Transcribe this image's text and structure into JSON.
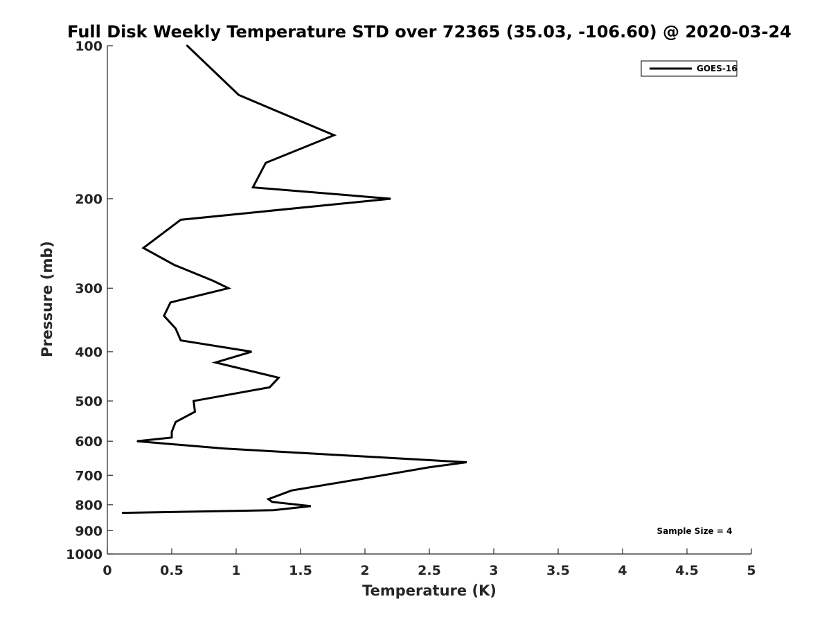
{
  "chart_data": {
    "type": "line",
    "title": "Full Disk Weekly Temperature STD over 72365 (35.03, -106.60) @ 2020-03-24",
    "xlabel": "Temperature (K)",
    "ylabel": "Pressure (mb)",
    "xlim": [
      0,
      5
    ],
    "ylim": [
      100,
      1000
    ],
    "y_scale": "log",
    "y_reversed": true,
    "x_ticks": [
      "0",
      "0.5",
      "1",
      "1.5",
      "2",
      "2.5",
      "3",
      "3.5",
      "4",
      "4.5",
      "5"
    ],
    "y_ticks": [
      "100",
      "200",
      "300",
      "400",
      "500",
      "600",
      "700",
      "800",
      "900",
      "1000"
    ],
    "grid": false,
    "legend_position": "top-right",
    "series": [
      {
        "name": "GOES-16",
        "color": "#000000",
        "points": [
          {
            "x": 0.62,
            "y": 100
          },
          {
            "x": 1.02,
            "y": 125
          },
          {
            "x": 1.76,
            "y": 150
          },
          {
            "x": 1.23,
            "y": 170
          },
          {
            "x": 1.13,
            "y": 190
          },
          {
            "x": 2.2,
            "y": 200
          },
          {
            "x": 0.57,
            "y": 220
          },
          {
            "x": 0.28,
            "y": 250
          },
          {
            "x": 0.52,
            "y": 270
          },
          {
            "x": 0.82,
            "y": 290
          },
          {
            "x": 0.94,
            "y": 300
          },
          {
            "x": 0.49,
            "y": 320
          },
          {
            "x": 0.44,
            "y": 340
          },
          {
            "x": 0.53,
            "y": 360
          },
          {
            "x": 0.57,
            "y": 380
          },
          {
            "x": 1.12,
            "y": 400
          },
          {
            "x": 0.84,
            "y": 420
          },
          {
            "x": 1.33,
            "y": 450
          },
          {
            "x": 1.26,
            "y": 470
          },
          {
            "x": 0.67,
            "y": 500
          },
          {
            "x": 0.68,
            "y": 525
          },
          {
            "x": 0.53,
            "y": 550
          },
          {
            "x": 0.5,
            "y": 575
          },
          {
            "x": 0.5,
            "y": 590
          },
          {
            "x": 0.23,
            "y": 600
          },
          {
            "x": 0.9,
            "y": 620
          },
          {
            "x": 2.79,
            "y": 660
          },
          {
            "x": 2.5,
            "y": 675
          },
          {
            "x": 2.14,
            "y": 700
          },
          {
            "x": 1.43,
            "y": 750
          },
          {
            "x": 1.25,
            "y": 780
          },
          {
            "x": 1.28,
            "y": 790
          },
          {
            "x": 1.58,
            "y": 805
          },
          {
            "x": 1.29,
            "y": 820
          },
          {
            "x": 0.12,
            "y": 830
          }
        ]
      }
    ],
    "annotation": "Sample Size = 4"
  }
}
